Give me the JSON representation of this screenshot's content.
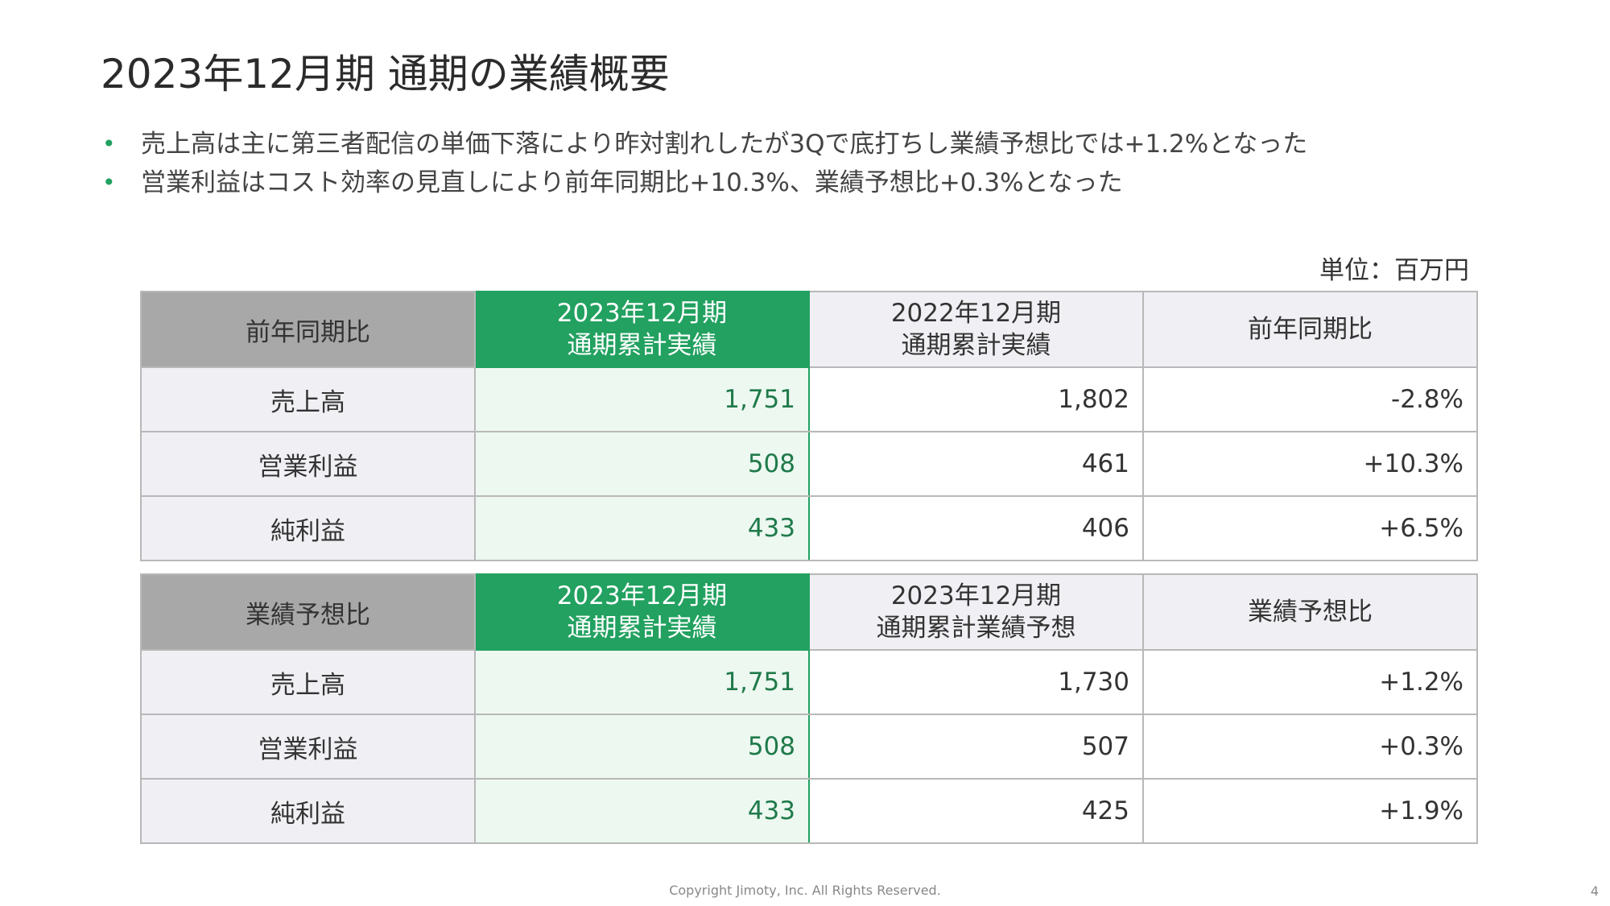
{
  "title": "2023年12月期 通期の業績概要",
  "bullets": [
    "売上高は主に第三者配信の単価下落により昨対割れしたが3Qで底打ちし業績予想比では+1.2%となった",
    "営業利益はコスト効率の見直しにより前年同期比+10.3%、業績予想比+0.3%となった"
  ],
  "bullet_symbol": "•",
  "unit": "単位：百万円",
  "colors": {
    "accent": "#22a160",
    "accent_light": "#edf8f1",
    "header_gray": "#a8a8a8",
    "cell_gray": "#f0f0f4"
  },
  "table_yoy": {
    "label": "前年同期比",
    "col1": [
      "2023年12月期",
      "通期累計実績"
    ],
    "col2": [
      "2022年12月期",
      "通期累計実績"
    ],
    "col3": "前年同期比",
    "rows": [
      {
        "item": "売上高",
        "current": "1,751",
        "compare": "1,802",
        "ratio": "-2.8%"
      },
      {
        "item": "営業利益",
        "current": "508",
        "compare": "461",
        "ratio": "+10.3%"
      },
      {
        "item": "純利益",
        "current": "433",
        "compare": "406",
        "ratio": "+6.5%"
      }
    ]
  },
  "table_forecast": {
    "label": "業績予想比",
    "col1": [
      "2023年12月期",
      "通期累計実績"
    ],
    "col2": [
      "2023年12月期",
      "通期累計業績予想"
    ],
    "col3": "業績予想比",
    "rows": [
      {
        "item": "売上高",
        "current": "1,751",
        "compare": "1,730",
        "ratio": "+1.2%"
      },
      {
        "item": "営業利益",
        "current": "508",
        "compare": "507",
        "ratio": "+0.3%"
      },
      {
        "item": "純利益",
        "current": "433",
        "compare": "425",
        "ratio": "+1.9%"
      }
    ]
  },
  "footer": "Copyright Jimoty, Inc. All Rights Reserved.",
  "page_number": "4"
}
